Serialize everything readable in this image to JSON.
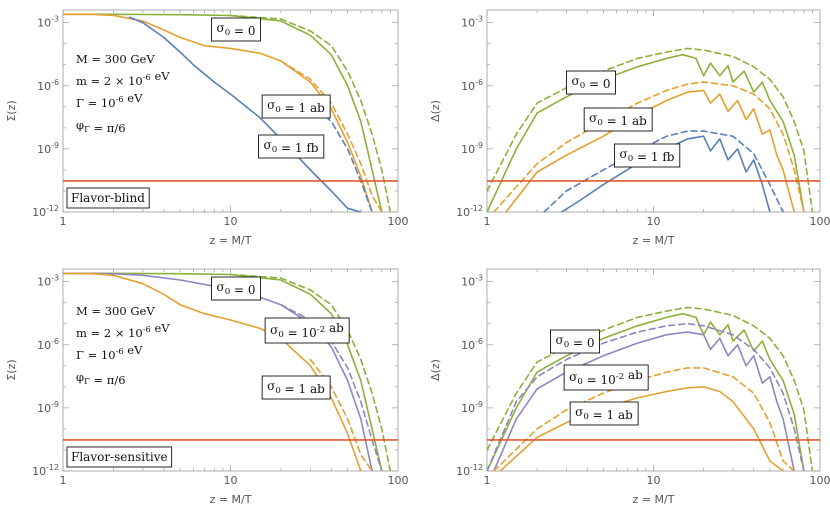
{
  "colors": {
    "green": "#8AB03A",
    "orange": "#E5A030",
    "blue": "#5A7FB6",
    "purple": "#8C87C2",
    "red": "#E0592F"
  },
  "chart_data": [
    {
      "type": "line",
      "title": "",
      "xlabel": "z = M/T",
      "ylabel": "Σ(z)",
      "x_scale": "log",
      "y_scale": "log",
      "xlim": [
        1,
        100
      ],
      "ylim": [
        1e-12,
        0.004
      ],
      "x_ticks": [
        "1",
        "10",
        "100"
      ],
      "y_ticks": [
        "10^-3",
        "10^-6",
        "10^-9",
        "10^-12"
      ],
      "panel_label": "Flavor-blind",
      "parameters": [
        "M = 300 GeV",
        "m = 2 × 10^-6 eV",
        "Γ = 10^-6 eV",
        "φ_Γ = π/6"
      ],
      "annotations": [
        "σ0 = 0",
        "σ0 = 1 ab",
        "σ0 = 1 fb"
      ],
      "horizontal_line": {
        "y": 3e-11,
        "color": "#E0592F"
      },
      "series": [
        {
          "color": "#8AB03A",
          "style": "solid",
          "x": [
            1,
            2,
            5,
            10,
            20,
            30,
            40,
            50,
            60,
            70,
            80
          ],
          "y": [
            0.0025,
            0.0025,
            0.0024,
            0.0022,
            0.0012,
            0.00025,
            3e-05,
            1e-06,
            2e-08,
            1e-10,
            1e-12
          ]
        },
        {
          "color": "#8AB03A",
          "style": "dashed",
          "x": [
            10,
            20,
            30,
            40,
            50,
            60,
            70,
            80,
            90
          ],
          "y": [
            0.0022,
            0.0015,
            0.0004,
            8e-05,
            5e-06,
            2e-07,
            5e-09,
            1e-10,
            1e-12
          ]
        },
        {
          "color": "#E5A030",
          "style": "solid",
          "x": [
            1,
            1.5,
            2,
            3,
            4,
            5,
            7,
            10,
            15,
            20,
            30,
            40,
            50,
            60,
            70
          ],
          "y": [
            0.0025,
            0.0025,
            0.0022,
            0.0012,
            0.00045,
            0.0002,
            8e-05,
            6e-05,
            3.5e-05,
            1.5e-05,
            1.5e-06,
            8e-08,
            2e-09,
            5e-11,
            1e-12
          ]
        },
        {
          "color": "#E5A030",
          "style": "dashed",
          "x": [
            20,
            30,
            40,
            50,
            60,
            70,
            80
          ],
          "y": [
            1.5e-05,
            2e-06,
            1.5e-07,
            5e-09,
            2e-10,
            6e-12,
            1e-12
          ]
        },
        {
          "color": "#5A7FB6",
          "style": "solid",
          "x": [
            2.5,
            3,
            4,
            5,
            6,
            8,
            10,
            15,
            20,
            30,
            40,
            50,
            60
          ],
          "y": [
            0.0018,
            0.001,
            0.0002,
            4e-05,
            1e-05,
            1.5e-06,
            4e-07,
            3e-08,
            3e-09,
            1e-10,
            1e-11,
            1.5e-12,
            1e-12
          ]
        },
        {
          "color": "#5A7FB6",
          "style": "dashed",
          "x": [
            30,
            40,
            50,
            60,
            70
          ],
          "y": [
            1.5e-07,
            2e-08,
            1e-09,
            3e-11,
            1e-12
          ]
        }
      ]
    },
    {
      "type": "line",
      "title": "",
      "xlabel": "z = M/T",
      "ylabel": "Δ(z)",
      "x_scale": "log",
      "y_scale": "log",
      "xlim": [
        1,
        100
      ],
      "ylim": [
        1e-12,
        0.004
      ],
      "x_ticks": [
        "1",
        "10",
        "100"
      ],
      "y_ticks": [
        "10^-3",
        "10^-6",
        "10^-9",
        "10^-12"
      ],
      "annotations": [
        "σ0 = 0",
        "σ0 = 1 ab",
        "σ0 = 1 fb"
      ],
      "horizontal_line": {
        "y": 3e-11,
        "color": "#E0592F"
      },
      "series": [
        {
          "color": "#8AB03A",
          "style": "solid",
          "x": [
            1,
            1.5,
            2,
            3,
            5,
            8,
            12,
            15,
            18,
            20,
            22,
            25,
            28,
            30,
            35,
            40,
            45,
            50,
            60,
            70,
            80
          ],
          "y": [
            1e-12,
            1e-09,
            5e-08,
            3e-07,
            2e-06,
            8e-06,
            2e-05,
            3e-05,
            2e-05,
            3e-06,
            1.2e-05,
            3e-06,
            9e-06,
            1.5e-06,
            5e-06,
            5e-07,
            1.5e-06,
            2e-07,
            2e-08,
            5e-10,
            1e-12
          ]
        },
        {
          "color": "#8AB03A",
          "style": "dashed",
          "x": [
            1,
            1.5,
            2,
            3,
            5,
            8,
            12,
            16,
            20,
            30,
            40,
            50,
            60,
            70,
            80,
            90
          ],
          "y": [
            1e-11,
            5e-09,
            1.5e-07,
            8e-07,
            5e-06,
            2e-05,
            4e-05,
            6e-05,
            5e-05,
            2.5e-05,
            8e-06,
            2e-06,
            3e-07,
            2e-08,
            8e-10,
            1e-12
          ]
        },
        {
          "color": "#E5A030",
          "style": "solid",
          "x": [
            1.3,
            2,
            3,
            5,
            8,
            12,
            16,
            20,
            22,
            25,
            28,
            32,
            36,
            40,
            45,
            50,
            55,
            60,
            70
          ],
          "y": [
            1e-12,
            8e-11,
            5e-10,
            4e-09,
            4e-08,
            2e-07,
            5e-07,
            6e-07,
            1.5e-07,
            4e-07,
            6e-08,
            2e-07,
            2.5e-08,
            8e-08,
            5e-09,
            8e-09,
            5e-10,
            1e-10,
            1e-12
          ]
        },
        {
          "color": "#E5A030",
          "style": "dashed",
          "x": [
            1.1,
            2,
            3,
            5,
            8,
            12,
            16,
            20,
            30,
            40,
            50,
            60,
            70,
            80
          ],
          "y": [
            1e-12,
            2e-10,
            2e-09,
            2e-08,
            1.5e-07,
            6e-07,
            1.2e-06,
            1.5e-06,
            1e-06,
            4e-07,
            8e-08,
            5e-09,
            1e-10,
            1e-12
          ]
        },
        {
          "color": "#5A7FB6",
          "style": "solid",
          "x": [
            2.8,
            3.5,
            5,
            8,
            12,
            16,
            20,
            22,
            25,
            28,
            32,
            36,
            40,
            45,
            50
          ],
          "y": [
            1e-12,
            3e-12,
            2e-11,
            2e-10,
            1e-09,
            3e-09,
            4e-09,
            8e-10,
            3e-09,
            3e-10,
            1e-09,
            8e-11,
            3e-10,
            2e-11,
            1e-12
          ]
        },
        {
          "color": "#5A7FB6",
          "style": "dashed",
          "x": [
            2.2,
            3,
            5,
            8,
            12,
            16,
            20,
            30,
            40,
            50,
            60
          ],
          "y": [
            1e-12,
            1e-11,
            1e-10,
            8e-10,
            4e-09,
            7e-09,
            7e-09,
            4e-09,
            6e-10,
            2e-11,
            1e-12
          ]
        }
      ]
    },
    {
      "type": "line",
      "title": "",
      "xlabel": "z = M/T",
      "ylabel": "Σ(z)",
      "x_scale": "log",
      "y_scale": "log",
      "xlim": [
        1,
        100
      ],
      "ylim": [
        1e-12,
        0.004
      ],
      "x_ticks": [
        "1",
        "10",
        "100"
      ],
      "y_ticks": [
        "10^-3",
        "10^-6",
        "10^-9",
        "10^-12"
      ],
      "panel_label": "Flavor-sensitive",
      "parameters": [
        "M = 300 GeV",
        "m = 2 × 10^-6 eV",
        "Γ = 10^-6 eV",
        "φ_Γ = π/6"
      ],
      "annotations": [
        "σ0 = 0",
        "σ0 = 10^-2 ab",
        "σ0 = 1 ab"
      ],
      "horizontal_line": {
        "y": 3e-11,
        "color": "#E0592F"
      },
      "series": [
        {
          "color": "#8AB03A",
          "style": "solid",
          "x": [
            1,
            2,
            5,
            10,
            20,
            30,
            40,
            50,
            60,
            70,
            80
          ],
          "y": [
            0.0025,
            0.0025,
            0.0024,
            0.0022,
            0.0012,
            0.00025,
            3e-05,
            1e-06,
            2e-08,
            1e-10,
            1e-12
          ]
        },
        {
          "color": "#8AB03A",
          "style": "dashed",
          "x": [
            10,
            20,
            30,
            40,
            50,
            60,
            70,
            80,
            90
          ],
          "y": [
            0.0022,
            0.0015,
            0.0004,
            8e-05,
            5e-06,
            2e-07,
            5e-09,
            1e-10,
            1e-12
          ]
        },
        {
          "color": "#8C87C2",
          "style": "solid",
          "x": [
            1,
            2,
            3,
            5,
            8,
            10,
            15,
            20,
            30,
            40,
            50,
            60,
            70
          ],
          "y": [
            0.0025,
            0.0024,
            0.002,
            0.0012,
            0.0006,
            0.0004,
            0.00018,
            8e-05,
            1e-05,
            8e-07,
            2e-08,
            3e-10,
            1e-12
          ]
        },
        {
          "color": "#8C87C2",
          "style": "dashed",
          "x": [
            20,
            30,
            40,
            50,
            60,
            70,
            80
          ],
          "y": [
            8e-05,
            1.5e-05,
            1.5e-06,
            8e-08,
            2e-09,
            3e-11,
            1e-12
          ]
        },
        {
          "color": "#E5A030",
          "style": "solid",
          "x": [
            1,
            1.5,
            2,
            3,
            4,
            5,
            7,
            10,
            15,
            20,
            30,
            40,
            50,
            60
          ],
          "y": [
            0.0025,
            0.0024,
            0.002,
            0.0008,
            0.00025,
            8e-05,
            3e-05,
            1.5e-05,
            6e-06,
            2e-06,
            1e-07,
            3e-09,
            6e-11,
            1e-12
          ]
        },
        {
          "color": "#E5A030",
          "style": "dashed",
          "x": [
            30,
            40,
            50,
            60,
            70
          ],
          "y": [
            2e-07,
            1e-08,
            3e-10,
            6e-12,
            1e-12
          ]
        }
      ]
    },
    {
      "type": "line",
      "title": "",
      "xlabel": "z = M/T",
      "ylabel": "Δ(z)",
      "x_scale": "log",
      "y_scale": "log",
      "xlim": [
        1,
        100
      ],
      "ylim": [
        1e-12,
        0.004
      ],
      "x_ticks": [
        "1",
        "10",
        "100"
      ],
      "y_ticks": [
        "10^-3",
        "10^-6",
        "10^-9",
        "10^-12"
      ],
      "annotations": [
        "σ0 = 0",
        "σ0 = 10^-2 ab",
        "σ0 = 1 ab"
      ],
      "horizontal_line": {
        "y": 3e-11,
        "color": "#E0592F"
      },
      "series": [
        {
          "color": "#8AB03A",
          "style": "solid",
          "x": [
            1,
            1.5,
            2,
            3,
            5,
            8,
            12,
            15,
            18,
            20,
            22,
            25,
            28,
            30,
            35,
            40,
            45,
            50,
            60,
            70,
            80
          ],
          "y": [
            1e-12,
            1e-09,
            5e-08,
            3e-07,
            2e-06,
            8e-06,
            2e-05,
            3e-05,
            2e-05,
            3e-06,
            1.2e-05,
            3e-06,
            9e-06,
            1.5e-06,
            5e-06,
            5e-07,
            1.5e-06,
            2e-07,
            2e-08,
            5e-10,
            1e-12
          ]
        },
        {
          "color": "#8AB03A",
          "style": "dashed",
          "x": [
            1,
            1.5,
            2,
            3,
            5,
            8,
            12,
            16,
            20,
            30,
            40,
            50,
            60,
            70,
            80,
            90
          ],
          "y": [
            1e-11,
            5e-09,
            1.5e-07,
            8e-07,
            5e-06,
            2e-05,
            4e-05,
            6e-05,
            5e-05,
            2.5e-05,
            8e-06,
            2e-06,
            3e-07,
            2e-08,
            8e-10,
            1e-12
          ]
        },
        {
          "color": "#8C87C2",
          "style": "solid",
          "x": [
            1.1,
            1.5,
            2,
            3,
            5,
            8,
            12,
            16,
            20,
            22,
            25,
            28,
            32,
            36,
            40,
            45,
            50,
            55,
            60,
            70
          ],
          "y": [
            1e-12,
            3e-10,
            8e-09,
            5e-08,
            3e-07,
            1.2e-06,
            3e-06,
            4e-06,
            3e-06,
            6e-07,
            2e-06,
            3e-07,
            1e-06,
            1e-07,
            3e-07,
            1.5e-08,
            3e-08,
            2e-09,
            3e-10,
            1e-12
          ]
        },
        {
          "color": "#8C87C2",
          "style": "dashed",
          "x": [
            1,
            1.5,
            2,
            3,
            5,
            8,
            12,
            16,
            20,
            30,
            40,
            50,
            60,
            70,
            80
          ],
          "y": [
            1e-12,
            2e-09,
            3e-08,
            2e-07,
            1.2e-06,
            4e-06,
            8e-06,
            1e-05,
            8e-06,
            3e-06,
            6e-07,
            8e-08,
            5e-09,
            1e-10,
            1e-12
          ]
        },
        {
          "color": "#E5A030",
          "style": "solid",
          "x": [
            1.2,
            2,
            3,
            5,
            8,
            12,
            16,
            20,
            25,
            30,
            40,
            50,
            60
          ],
          "y": [
            1e-12,
            4e-11,
            2e-10,
            1e-09,
            3e-09,
            6e-09,
            9e-09,
            1e-08,
            6e-09,
            2e-09,
            1e-10,
            3e-12,
            1e-12
          ]
        },
        {
          "color": "#E5A030",
          "style": "dashed",
          "x": [
            1.1,
            2,
            3,
            5,
            8,
            12,
            16,
            20,
            30,
            40,
            50,
            60,
            70
          ],
          "y": [
            1e-12,
            1e-10,
            8e-10,
            5e-09,
            2e-08,
            5e-08,
            8e-08,
            8e-08,
            3e-08,
            5e-09,
            2e-10,
            3e-12,
            1e-12
          ]
        }
      ]
    }
  ]
}
